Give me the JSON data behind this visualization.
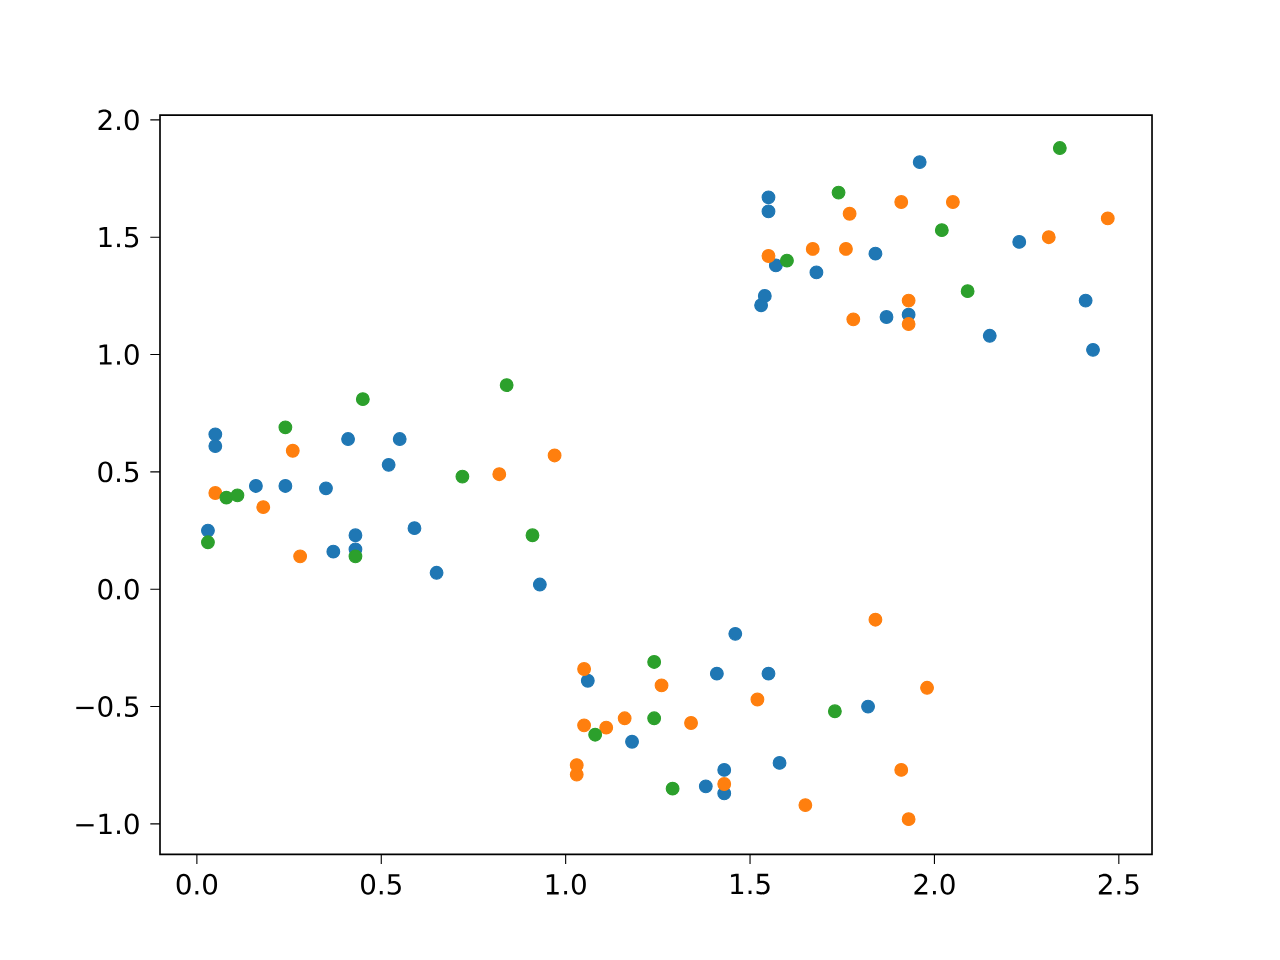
{
  "chart_data": {
    "type": "scatter",
    "marker": "circle",
    "xlim": [
      -0.1,
      2.59
    ],
    "ylim": [
      -1.13,
      2.02
    ],
    "xticks": [
      {
        "value": 0,
        "label": "0.0"
      },
      {
        "value": 0.5,
        "label": "0.5"
      },
      {
        "value": 1,
        "label": "1.0"
      },
      {
        "value": 1.5,
        "label": "1.5"
      },
      {
        "value": 2,
        "label": "2.0"
      },
      {
        "value": 2.5,
        "label": "2.5"
      }
    ],
    "yticks": [
      {
        "value": -1,
        "label": "−1.0"
      },
      {
        "value": -0.5,
        "label": "−0.5"
      },
      {
        "value": 0,
        "label": "0.0"
      },
      {
        "value": 0.5,
        "label": "0.5"
      },
      {
        "value": 1,
        "label": "1.0"
      },
      {
        "value": 1.5,
        "label": "1.5"
      },
      {
        "value": 2,
        "label": "2.0"
      }
    ],
    "series": [
      {
        "color": "#1f77b4",
        "x": [
          0.03,
          0.05,
          0.05,
          0.16,
          0.24,
          0.35,
          0.37,
          0.41,
          0.43,
          0.43,
          0.52,
          0.55,
          0.59,
          0.65,
          0.93,
          1.06,
          1.18,
          1.38,
          1.41,
          1.43,
          1.43,
          1.46,
          1.55,
          1.58,
          1.82,
          1.53,
          1.54,
          1.55,
          1.55,
          1.57,
          1.68,
          1.84,
          1.87,
          1.93,
          1.96,
          2.15,
          2.23,
          2.41,
          2.43
        ],
        "values": [
          0.25,
          0.66,
          0.61,
          0.44,
          0.44,
          0.43,
          0.16,
          0.64,
          0.23,
          0.17,
          0.53,
          0.64,
          0.26,
          0.07,
          0.02,
          -0.39,
          -0.65,
          -0.84,
          -0.36,
          -0.77,
          -0.87,
          -0.19,
          -0.36,
          -0.74,
          -0.5,
          1.21,
          1.25,
          1.67,
          1.61,
          1.38,
          1.35,
          1.43,
          1.16,
          1.17,
          1.82,
          1.08,
          1.48,
          1.23,
          1.02
        ]
      },
      {
        "color": "#ff7f0e",
        "x": [
          0.05,
          0.18,
          0.26,
          0.28,
          0.82,
          0.97,
          1.03,
          1.03,
          1.05,
          1.05,
          1.11,
          1.16,
          1.26,
          1.34,
          1.43,
          1.52,
          1.65,
          1.84,
          1.91,
          1.93,
          1.98,
          1.55,
          1.67,
          1.76,
          1.77,
          1.78,
          1.91,
          1.93,
          1.93,
          2.05,
          2.31,
          2.47
        ],
        "values": [
          0.41,
          0.35,
          0.59,
          0.14,
          0.49,
          0.57,
          -0.79,
          -0.75,
          -0.34,
          -0.58,
          -0.59,
          -0.55,
          -0.41,
          -0.57,
          -0.83,
          -0.47,
          -0.92,
          -0.13,
          -0.77,
          -0.98,
          -0.42,
          1.42,
          1.45,
          1.45,
          1.6,
          1.15,
          1.65,
          1.13,
          1.23,
          1.65,
          1.5,
          1.58
        ]
      },
      {
        "color": "#2ca02c",
        "x": [
          0.03,
          0.08,
          0.11,
          0.24,
          0.43,
          0.45,
          0.72,
          0.84,
          0.91,
          1.08,
          1.24,
          1.24,
          1.29,
          1.73,
          1.6,
          1.74,
          2.02,
          2.09,
          2.34
        ],
        "values": [
          0.2,
          0.39,
          0.4,
          0.69,
          0.14,
          0.81,
          0.48,
          0.87,
          0.23,
          -0.62,
          -0.31,
          -0.55,
          -0.85,
          -0.52,
          1.4,
          1.69,
          1.53,
          1.27,
          1.88
        ]
      }
    ]
  }
}
